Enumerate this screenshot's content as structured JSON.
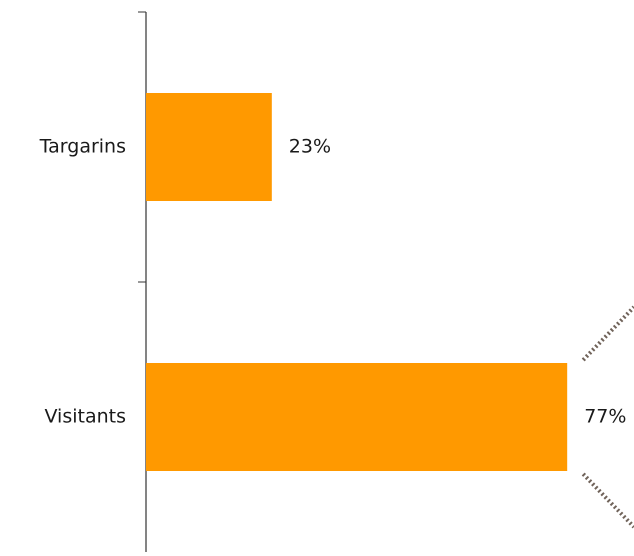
{
  "chart_data": {
    "type": "bar",
    "orientation": "horizontal",
    "categories": [
      "Targarins",
      "Visitants"
    ],
    "values": [
      23,
      77
    ],
    "value_suffix": "%",
    "xlim": [
      0,
      100
    ],
    "grid": false,
    "legend": "none",
    "title": "",
    "xlabel": "",
    "ylabel": "",
    "colors": {
      "bar": "#FF9900",
      "axis": "#333333",
      "connector": "#70635A"
    }
  }
}
